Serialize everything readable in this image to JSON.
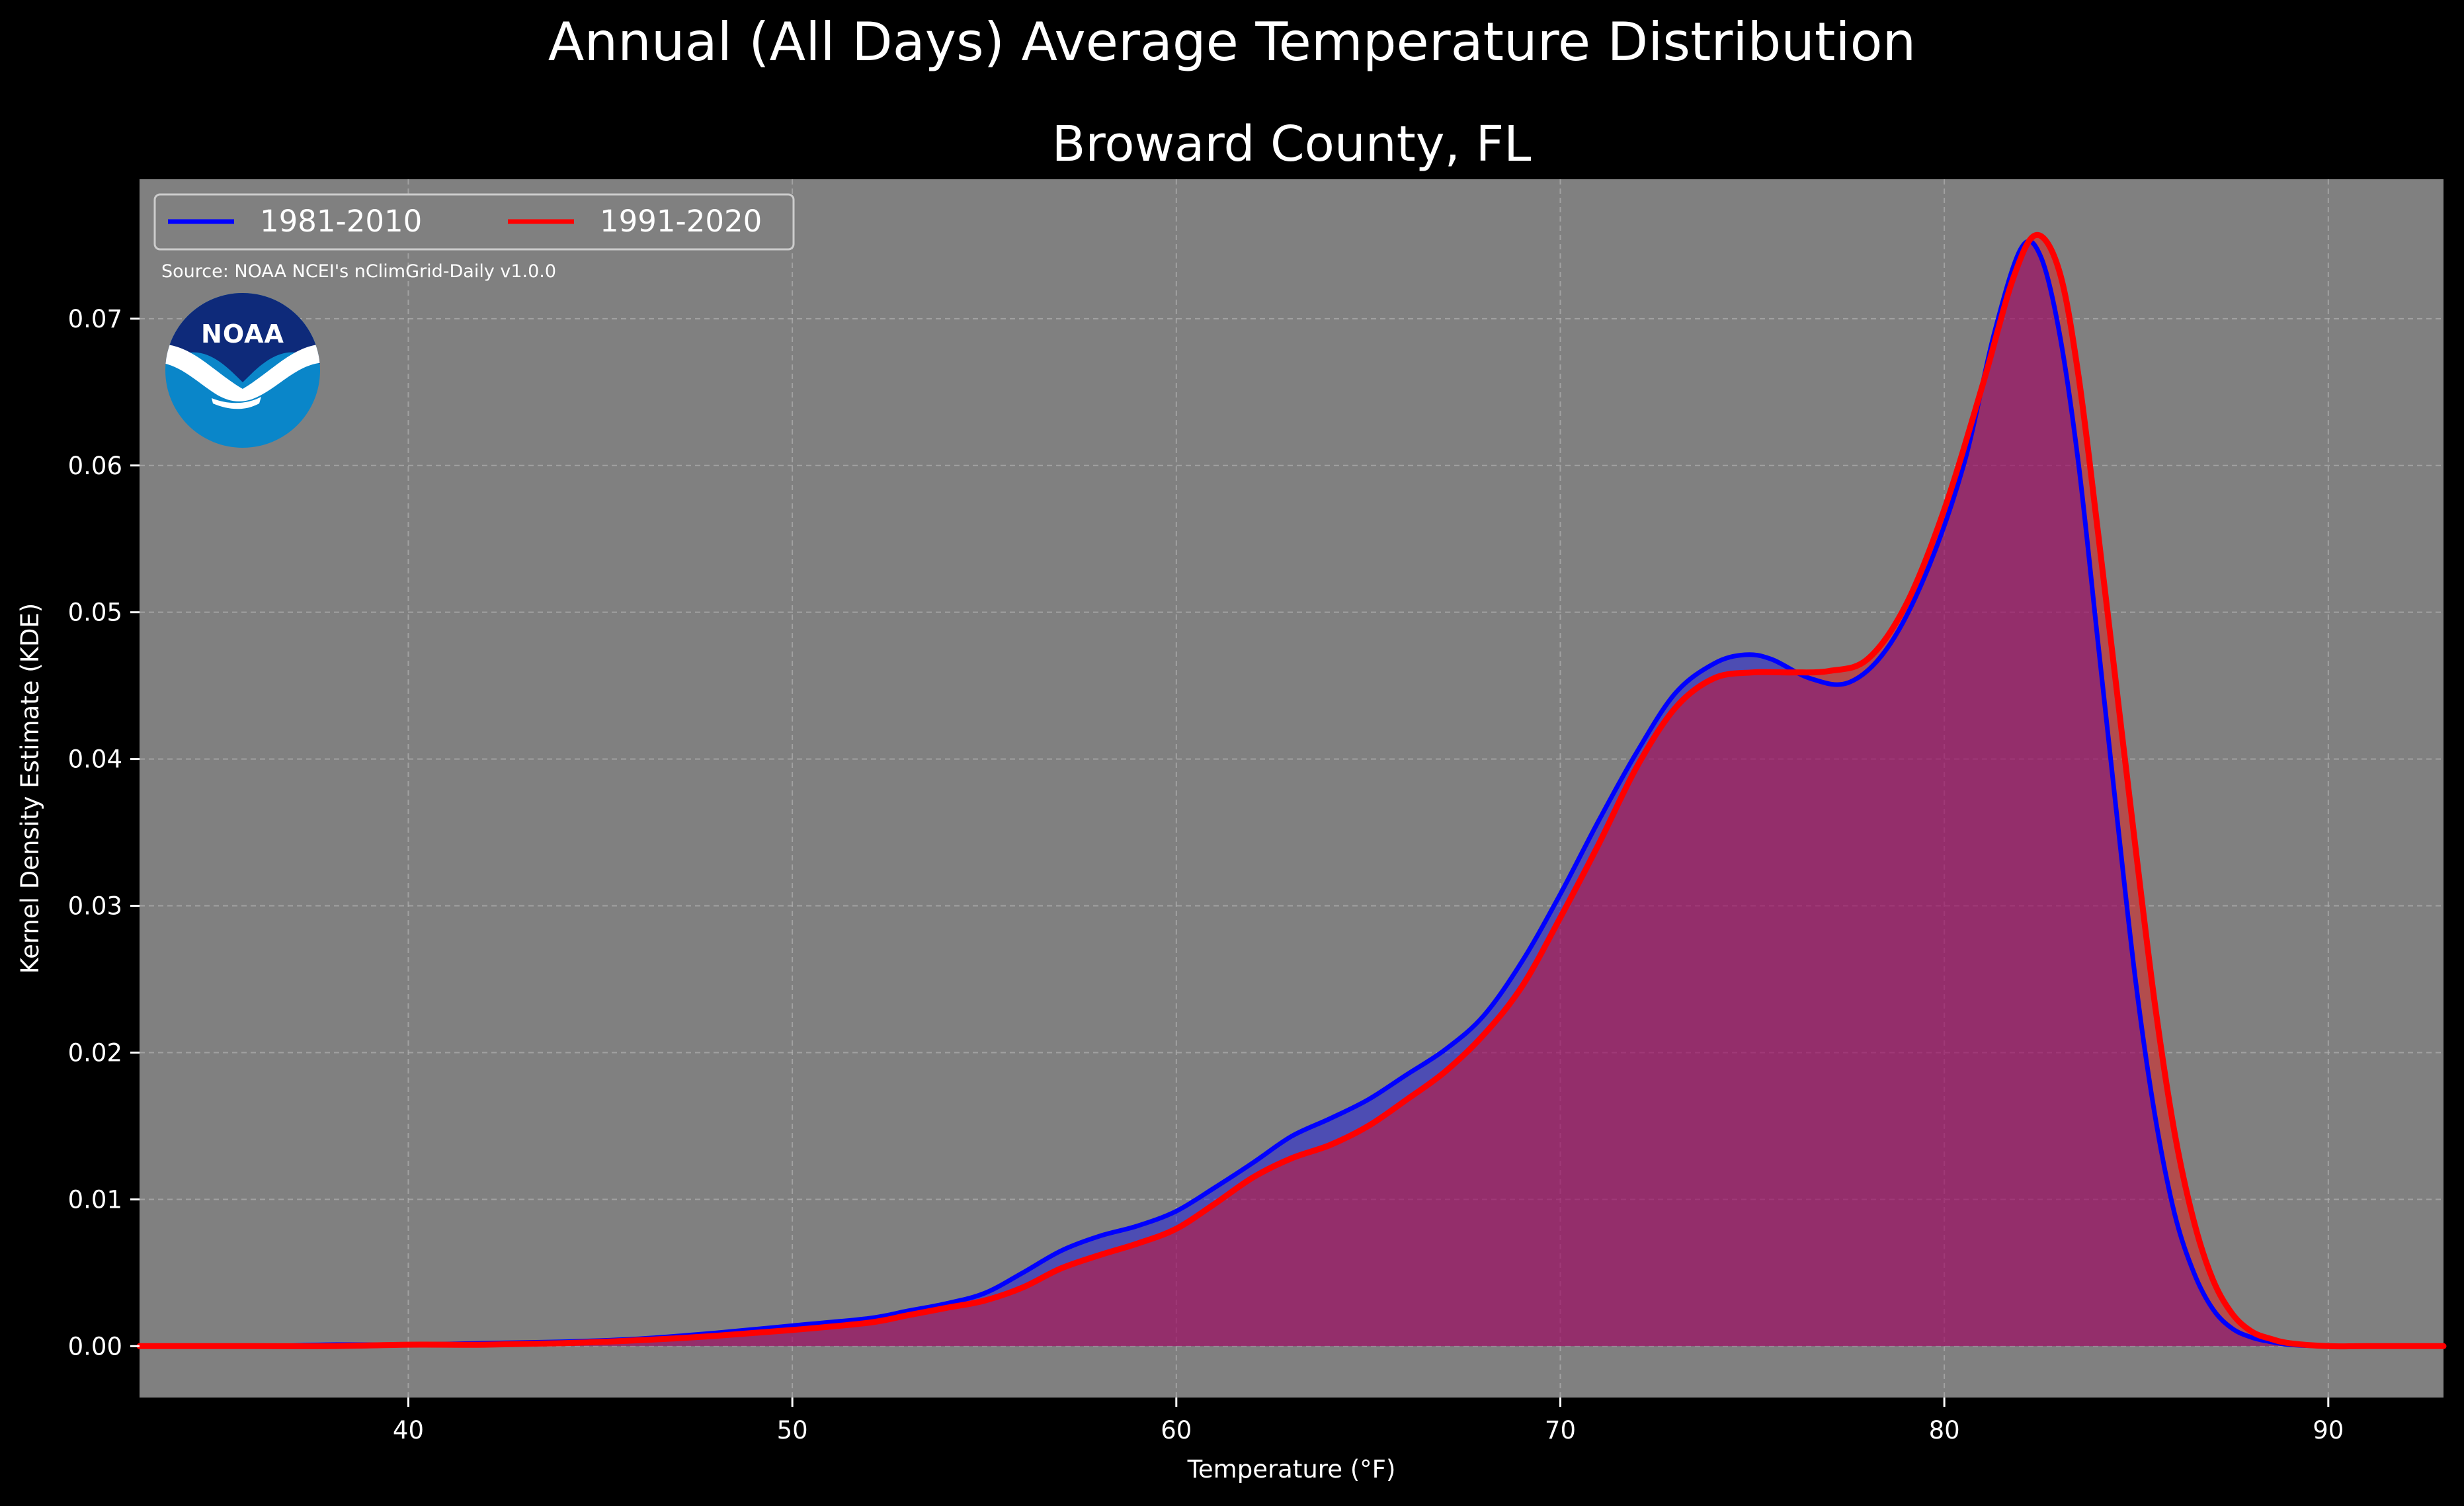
{
  "figure": {
    "suptitle": "Annual (All Days) Average Temperature Distribution",
    "title": "Broward County, FL",
    "source_note": "Source: NOAA NCEI's nClimGrid-Daily v1.0.0",
    "logo_text": "NOAA",
    "background_color": "#000000",
    "axes_color": "#808080"
  },
  "chart_data": {
    "type": "area",
    "title": "Broward County, FL",
    "xlabel": "Temperature (°F)",
    "ylabel": "Kernel Density Estimate (KDE)",
    "xlim": [
      33,
      93
    ],
    "ylim": [
      -0.0035,
      0.0795
    ],
    "xticks": [
      40,
      50,
      60,
      70,
      80,
      90
    ],
    "yticks": [
      0.0,
      0.01,
      0.02,
      0.03,
      0.04,
      0.05,
      0.06,
      0.07
    ],
    "ytick_labels": [
      "0.00",
      "0.01",
      "0.02",
      "0.03",
      "0.04",
      "0.05",
      "0.06",
      "0.07"
    ],
    "grid": true,
    "legend": {
      "position": "top-left",
      "columns": 2
    },
    "series": [
      {
        "name": "1981-2010",
        "color": "#0000ff",
        "fill": "#0000ff",
        "x": [
          33,
          36,
          38,
          40,
          42,
          44,
          46,
          48,
          50,
          52,
          53,
          54,
          55,
          56,
          57,
          58,
          59,
          60,
          61,
          62,
          63,
          64,
          65,
          66,
          67,
          68,
          69,
          70,
          71,
          72,
          73,
          74,
          74.8,
          75.5,
          76.5,
          77.5,
          78.5,
          79.5,
          80.5,
          81.3,
          82,
          82.5,
          83,
          83.5,
          84,
          84.5,
          85,
          85.5,
          86,
          86.5,
          87,
          87.5,
          88,
          88.5,
          89,
          90,
          91,
          93
        ],
        "y": [
          0.0,
          0.0,
          0.0001,
          0.0001,
          0.0002,
          0.0003,
          0.0005,
          0.0009,
          0.0014,
          0.0019,
          0.0024,
          0.0029,
          0.0036,
          0.005,
          0.0065,
          0.0075,
          0.0082,
          0.0092,
          0.0108,
          0.0125,
          0.0143,
          0.0155,
          0.0168,
          0.0185,
          0.0202,
          0.0225,
          0.0262,
          0.0308,
          0.0358,
          0.0405,
          0.0445,
          0.0465,
          0.0471,
          0.0468,
          0.0455,
          0.0452,
          0.0475,
          0.0525,
          0.06,
          0.069,
          0.0748,
          0.0743,
          0.069,
          0.06,
          0.048,
          0.036,
          0.0245,
          0.0155,
          0.009,
          0.005,
          0.0025,
          0.0012,
          0.0006,
          0.0003,
          0.0001,
          0.0,
          0.0,
          0.0
        ]
      },
      {
        "name": "1991-2020",
        "color": "#ff0000",
        "fill": "#ff0000",
        "x": [
          33,
          36,
          38,
          40,
          42,
          44,
          46,
          48,
          50,
          52,
          53,
          54,
          55,
          56,
          57,
          58,
          59,
          60,
          61,
          62,
          63,
          64,
          65,
          66,
          67,
          68,
          69,
          70,
          71,
          72,
          73,
          74,
          75,
          76,
          77,
          78,
          79,
          80,
          81,
          81.8,
          82.4,
          83,
          83.5,
          84,
          84.5,
          85,
          85.5,
          86,
          86.5,
          87,
          87.5,
          88,
          88.5,
          89,
          90,
          91,
          93
        ],
        "y": [
          0.0,
          0.0,
          0.0,
          0.0001,
          0.0001,
          0.0002,
          0.0004,
          0.0007,
          0.0011,
          0.0016,
          0.0021,
          0.0026,
          0.0031,
          0.004,
          0.0053,
          0.0062,
          0.007,
          0.008,
          0.0097,
          0.0115,
          0.0128,
          0.0137,
          0.015,
          0.0168,
          0.0187,
          0.0212,
          0.0245,
          0.0292,
          0.0342,
          0.0395,
          0.0435,
          0.0455,
          0.0459,
          0.0459,
          0.046,
          0.0468,
          0.0505,
          0.057,
          0.0655,
          0.0728,
          0.0757,
          0.0732,
          0.066,
          0.0555,
          0.0445,
          0.0335,
          0.023,
          0.0145,
          0.0085,
          0.0045,
          0.0022,
          0.001,
          0.0005,
          0.0002,
          0.0,
          0.0,
          0.0
        ]
      }
    ]
  }
}
